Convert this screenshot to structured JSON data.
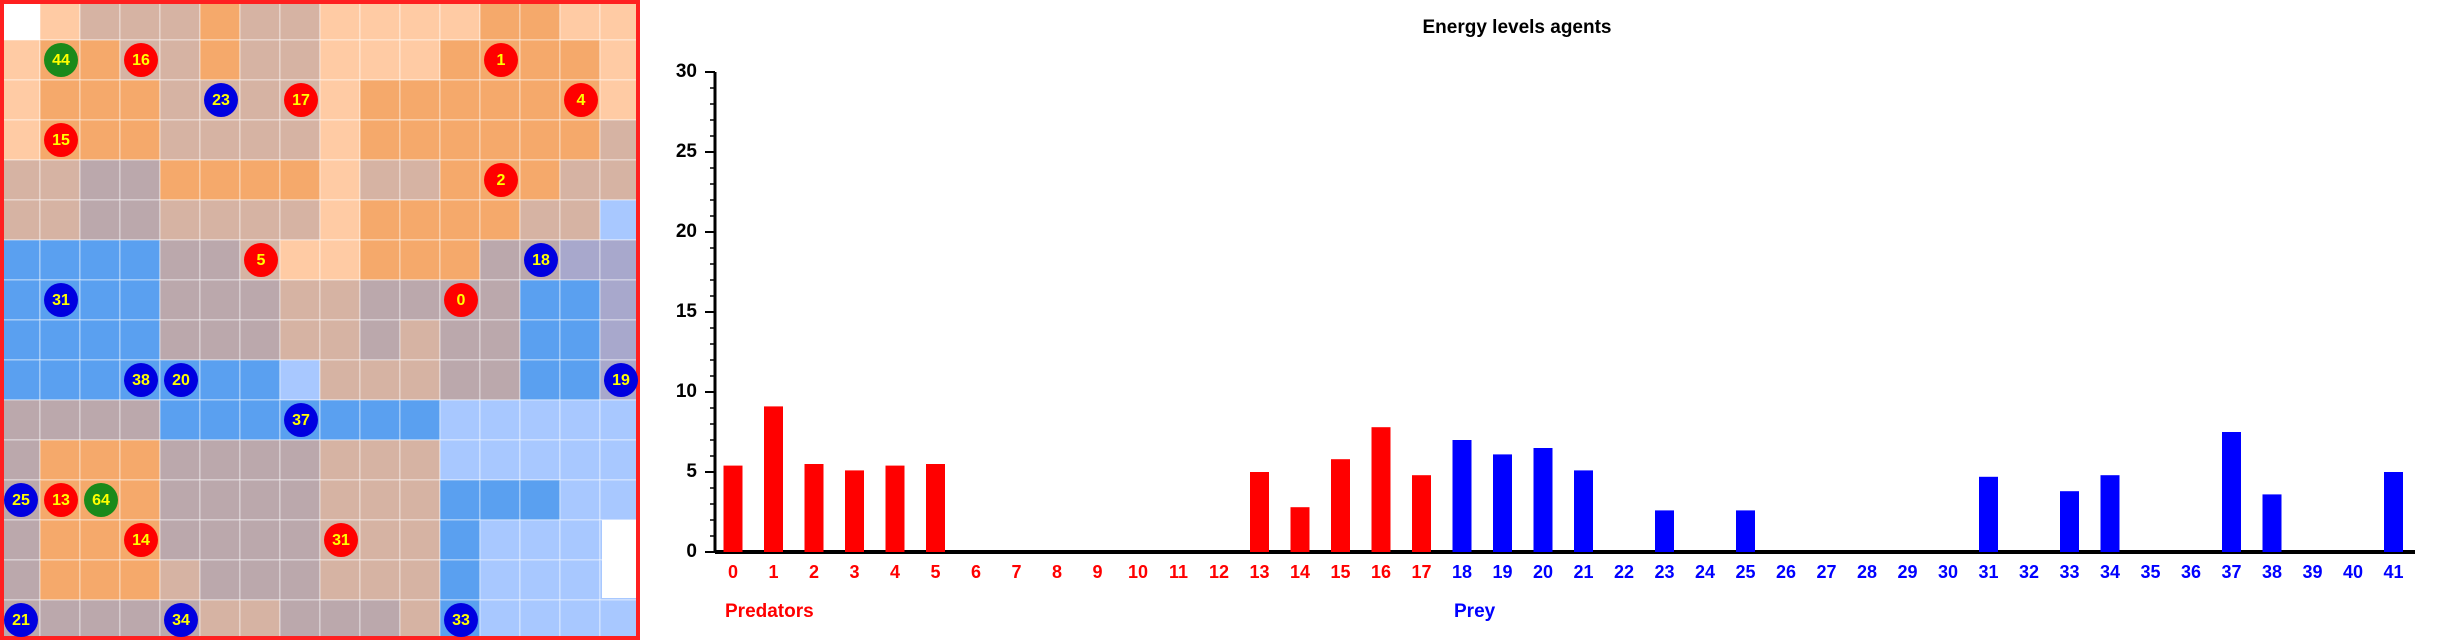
{
  "grid": {
    "agents": [
      {
        "label": "44",
        "color": "#1a8a1a"
      },
      {
        "label": "16",
        "color": "#ff0000"
      },
      {
        "label": "1",
        "color": "#ff0000"
      },
      {
        "label": "23",
        "color": "#0000e0"
      },
      {
        "label": "17",
        "color": "#ff0000"
      },
      {
        "label": "4",
        "color": "#ff0000"
      },
      {
        "label": "15",
        "color": "#ff0000"
      },
      {
        "label": "2",
        "color": "#ff0000"
      },
      {
        "label": "5",
        "color": "#ff0000"
      },
      {
        "label": "18",
        "color": "#0000e0"
      },
      {
        "label": "31",
        "color": "#0000e0"
      },
      {
        "label": "0",
        "color": "#ff0000"
      },
      {
        "label": "38",
        "color": "#0000e0"
      },
      {
        "label": "20",
        "color": "#0000e0"
      },
      {
        "label": "19",
        "color": "#0000e0"
      },
      {
        "label": "37",
        "color": "#0000e0"
      },
      {
        "label": "25",
        "color": "#0000e0"
      },
      {
        "label": "13",
        "color": "#ff0000"
      },
      {
        "label": "64",
        "color": "#1a8a1a"
      },
      {
        "label": "14",
        "color": "#ff0000"
      },
      {
        "label": "31",
        "color": "#ff0000"
      },
      {
        "label": "21",
        "color": "#0000e0"
      },
      {
        "label": "34",
        "color": "#0000e0"
      },
      {
        "label": "33",
        "color": "#0000e0"
      }
    ]
  },
  "chart_data": {
    "type": "bar",
    "title": "Energy levels agents",
    "categories": [
      "0",
      "1",
      "2",
      "3",
      "4",
      "5",
      "6",
      "7",
      "8",
      "9",
      "10",
      "11",
      "12",
      "13",
      "14",
      "15",
      "16",
      "17",
      "18",
      "19",
      "20",
      "21",
      "22",
      "23",
      "24",
      "25",
      "26",
      "27",
      "28",
      "29",
      "30",
      "31",
      "32",
      "33",
      "34",
      "35",
      "36",
      "37",
      "38",
      "39",
      "40",
      "41"
    ],
    "series": [
      {
        "name": "Predators",
        "color": "#ff0000",
        "values": [
          5.4,
          9.1,
          5.5,
          5.1,
          5.4,
          5.5,
          0,
          0,
          0,
          0,
          0,
          0,
          0,
          5.0,
          2.8,
          5.8,
          7.8,
          4.8,
          null,
          null,
          null,
          null,
          null,
          null,
          null,
          null,
          null,
          null,
          null,
          null,
          null,
          null,
          null,
          null,
          null,
          null,
          null,
          null,
          null,
          null,
          null,
          null
        ]
      },
      {
        "name": "Prey",
        "color": "#0000ff",
        "values": [
          null,
          null,
          null,
          null,
          null,
          null,
          null,
          null,
          null,
          null,
          null,
          null,
          null,
          null,
          null,
          null,
          null,
          null,
          7.0,
          6.1,
          6.5,
          5.1,
          0,
          2.6,
          0,
          2.6,
          0,
          0,
          0,
          0,
          0,
          4.7,
          0,
          3.8,
          4.8,
          0,
          0,
          7.5,
          3.6,
          0,
          0,
          5.0
        ]
      }
    ],
    "ylim": [
      0,
      30
    ],
    "yticks": [
      0,
      5,
      10,
      15,
      20,
      25,
      30
    ]
  }
}
